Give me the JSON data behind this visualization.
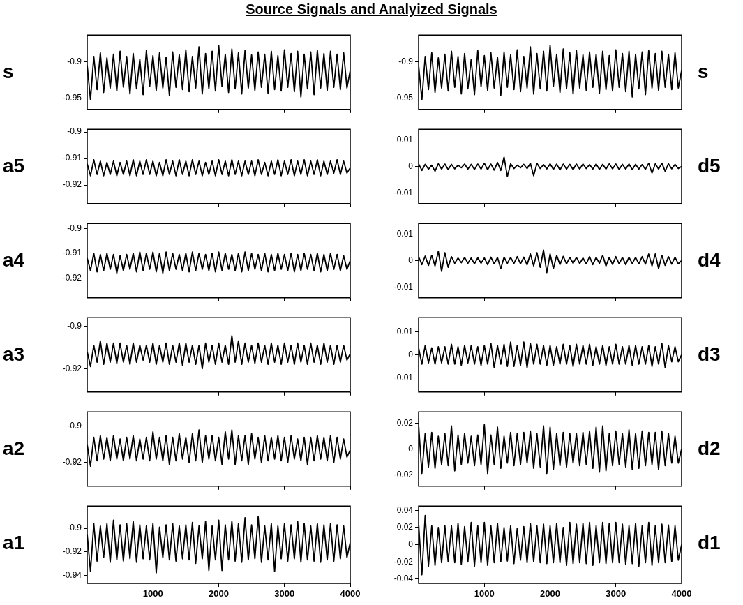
{
  "chart_data": [
    {
      "type": "line",
      "title": "Source Signals and Analyized Signals",
      "ylabel": "s",
      "xlim": [
        0,
        4000
      ],
      "xticks": [
        1000,
        2000,
        3000,
        4000
      ],
      "ylim": [
        -0.965,
        -0.864
      ],
      "yticks": [
        -0.95,
        -0.9
      ],
      "tick_labels": "y",
      "x": [
        0,
        50,
        100,
        150,
        200,
        250,
        300,
        350,
        400,
        450,
        500,
        550,
        600,
        650,
        700,
        750,
        800,
        850,
        900,
        950,
        1000,
        1050,
        1100,
        1150,
        1200,
        1250,
        1300,
        1350,
        1400,
        1450,
        1500,
        1550,
        1600,
        1650,
        1700,
        1750,
        1800,
        1850,
        1900,
        1950,
        2000,
        2050,
        2100,
        2150,
        2200,
        2250,
        2300,
        2350,
        2400,
        2450,
        2500,
        2550,
        2600,
        2650,
        2700,
        2750,
        2800,
        2850,
        2900,
        2950,
        3000,
        3050,
        3100,
        3150,
        3200,
        3250,
        3300,
        3350,
        3400,
        3450,
        3500,
        3550,
        3600,
        3650,
        3700,
        3750,
        3800,
        3850,
        3900,
        3950,
        4000
      ],
      "series": [
        {
          "color": "#000000",
          "values": [
            -0.905,
            -0.952,
            -0.893,
            -0.938,
            -0.888,
            -0.942,
            -0.895,
            -0.936,
            -0.89,
            -0.94,
            -0.886,
            -0.935,
            -0.893,
            -0.944,
            -0.889,
            -0.937,
            -0.897,
            -0.945,
            -0.885,
            -0.934,
            -0.892,
            -0.939,
            -0.888,
            -0.936,
            -0.894,
            -0.946,
            -0.887,
            -0.935,
            -0.891,
            -0.938,
            -0.884,
            -0.941,
            -0.893,
            -0.936,
            -0.88,
            -0.944,
            -0.889,
            -0.937,
            -0.886,
            -0.94,
            -0.878,
            -0.934,
            -0.89,
            -0.942,
            -0.883,
            -0.937,
            -0.888,
            -0.944,
            -0.885,
            -0.936,
            -0.891,
            -0.939,
            -0.887,
            -0.935,
            -0.89,
            -0.943,
            -0.886,
            -0.938,
            -0.892,
            -0.94,
            -0.884,
            -0.935,
            -0.889,
            -0.941,
            -0.886,
            -0.948,
            -0.89,
            -0.937,
            -0.887,
            -0.945,
            -0.885,
            -0.936,
            -0.889,
            -0.939,
            -0.886,
            -0.935,
            -0.89,
            -0.938,
            -0.888,
            -0.936,
            -0.912
          ]
        }
      ]
    },
    {
      "type": "line",
      "ylabel": "s",
      "xlim": [
        0,
        4000
      ],
      "xticks": [
        1000,
        2000,
        3000,
        4000
      ],
      "ylim": [
        -0.965,
        -0.864
      ],
      "yticks": [
        -0.95,
        -0.9
      ],
      "tick_labels": "y",
      "x": [
        0,
        50,
        100,
        150,
        200,
        250,
        300,
        350,
        400,
        450,
        500,
        550,
        600,
        650,
        700,
        750,
        800,
        850,
        900,
        950,
        1000,
        1050,
        1100,
        1150,
        1200,
        1250,
        1300,
        1350,
        1400,
        1450,
        1500,
        1550,
        1600,
        1650,
        1700,
        1750,
        1800,
        1850,
        1900,
        1950,
        2000,
        2050,
        2100,
        2150,
        2200,
        2250,
        2300,
        2350,
        2400,
        2450,
        2500,
        2550,
        2600,
        2650,
        2700,
        2750,
        2800,
        2850,
        2900,
        2950,
        3000,
        3050,
        3100,
        3150,
        3200,
        3250,
        3300,
        3350,
        3400,
        3450,
        3500,
        3550,
        3600,
        3650,
        3700,
        3750,
        3800,
        3850,
        3900,
        3950,
        4000
      ],
      "series": [
        {
          "color": "#000000",
          "values": [
            -0.905,
            -0.952,
            -0.893,
            -0.938,
            -0.888,
            -0.942,
            -0.895,
            -0.936,
            -0.89,
            -0.94,
            -0.886,
            -0.935,
            -0.893,
            -0.944,
            -0.889,
            -0.937,
            -0.897,
            -0.945,
            -0.885,
            -0.934,
            -0.892,
            -0.939,
            -0.888,
            -0.936,
            -0.894,
            -0.946,
            -0.887,
            -0.935,
            -0.891,
            -0.938,
            -0.884,
            -0.941,
            -0.893,
            -0.936,
            -0.88,
            -0.944,
            -0.889,
            -0.937,
            -0.886,
            -0.94,
            -0.878,
            -0.934,
            -0.89,
            -0.942,
            -0.883,
            -0.937,
            -0.888,
            -0.944,
            -0.885,
            -0.936,
            -0.891,
            -0.939,
            -0.887,
            -0.935,
            -0.89,
            -0.943,
            -0.886,
            -0.938,
            -0.892,
            -0.94,
            -0.884,
            -0.935,
            -0.889,
            -0.941,
            -0.886,
            -0.948,
            -0.89,
            -0.937,
            -0.887,
            -0.945,
            -0.885,
            -0.936,
            -0.889,
            -0.939,
            -0.886,
            -0.935,
            -0.89,
            -0.938,
            -0.888,
            -0.936,
            -0.912
          ]
        }
      ]
    },
    {
      "type": "line",
      "ylabel": "a5",
      "xlim": [
        0,
        4000
      ],
      "xticks": [
        1000,
        2000,
        3000,
        4000
      ],
      "ylim": [
        -0.927,
        -0.899
      ],
      "yticks": [
        -0.92,
        -0.91,
        -0.9
      ],
      "tick_labels": "y",
      "x": [
        0,
        50,
        100,
        150,
        200,
        250,
        300,
        350,
        400,
        450,
        500,
        550,
        600,
        650,
        700,
        750,
        800,
        850,
        900,
        950,
        1000,
        1050,
        1100,
        1150,
        1200,
        1250,
        1300,
        1350,
        1400,
        1450,
        1500,
        1550,
        1600,
        1650,
        1700,
        1750,
        1800,
        1850,
        1900,
        1950,
        2000,
        2050,
        2100,
        2150,
        2200,
        2250,
        2300,
        2350,
        2400,
        2450,
        2500,
        2550,
        2600,
        2650,
        2700,
        2750,
        2800,
        2850,
        2900,
        2950,
        3000,
        3050,
        3100,
        3150,
        3200,
        3250,
        3300,
        3350,
        3400,
        3450,
        3500,
        3550,
        3600,
        3650,
        3700,
        3750,
        3800,
        3850,
        3900,
        3950,
        4000
      ],
      "series": [
        {
          "color": "#000000",
          "values": [
            -0.912,
            -0.9165,
            -0.9105,
            -0.916,
            -0.911,
            -0.9165,
            -0.9115,
            -0.916,
            -0.911,
            -0.9165,
            -0.9115,
            -0.916,
            -0.911,
            -0.9165,
            -0.9105,
            -0.9165,
            -0.911,
            -0.916,
            -0.9105,
            -0.916,
            -0.911,
            -0.9165,
            -0.9115,
            -0.9165,
            -0.9105,
            -0.916,
            -0.911,
            -0.9165,
            -0.9105,
            -0.916,
            -0.911,
            -0.9165,
            -0.9105,
            -0.916,
            -0.911,
            -0.9165,
            -0.9115,
            -0.916,
            -0.911,
            -0.9165,
            -0.9105,
            -0.916,
            -0.911,
            -0.9165,
            -0.9105,
            -0.916,
            -0.911,
            -0.9165,
            -0.911,
            -0.916,
            -0.911,
            -0.9165,
            -0.9105,
            -0.916,
            -0.9115,
            -0.9165,
            -0.911,
            -0.916,
            -0.9105,
            -0.9165,
            -0.911,
            -0.916,
            -0.9105,
            -0.9165,
            -0.911,
            -0.916,
            -0.9105,
            -0.9165,
            -0.911,
            -0.916,
            -0.9105,
            -0.9165,
            -0.911,
            -0.916,
            -0.911,
            -0.9155,
            -0.9105,
            -0.916,
            -0.911,
            -0.9155,
            -0.9135
          ]
        }
      ]
    },
    {
      "type": "line",
      "ylabel": "d5",
      "xlim": [
        0,
        4000
      ],
      "xticks": [
        1000,
        2000,
        3000,
        4000
      ],
      "ylim": [
        -0.014,
        0.014
      ],
      "yticks": [
        -0.01,
        0,
        0.01
      ],
      "tick_labels": "y",
      "x": [
        0,
        50,
        100,
        150,
        200,
        250,
        300,
        350,
        400,
        450,
        500,
        550,
        600,
        650,
        700,
        750,
        800,
        850,
        900,
        950,
        1000,
        1050,
        1100,
        1150,
        1200,
        1250,
        1300,
        1350,
        1400,
        1450,
        1500,
        1550,
        1600,
        1650,
        1700,
        1750,
        1800,
        1850,
        1900,
        1950,
        2000,
        2050,
        2100,
        2150,
        2200,
        2250,
        2300,
        2350,
        2400,
        2450,
        2500,
        2550,
        2600,
        2650,
        2700,
        2750,
        2800,
        2850,
        2900,
        2950,
        3000,
        3050,
        3100,
        3150,
        3200,
        3250,
        3300,
        3350,
        3400,
        3450,
        3500,
        3550,
        3600,
        3650,
        3700,
        3750,
        3800,
        3850,
        3900,
        3950,
        4000
      ],
      "series": [
        {
          "color": "#000000",
          "values": [
            0.001,
            -0.0015,
            0.0008,
            -0.001,
            0.0005,
            -0.0018,
            0.001,
            -0.001,
            0.0009,
            -0.0012,
            0.0008,
            -0.0009,
            0.0005,
            -0.0005,
            0.0009,
            -0.001,
            0.0008,
            -0.0011,
            0.0009,
            -0.001,
            0.0012,
            -0.0012,
            0.0009,
            -0.0014,
            0.0015,
            -0.0015,
            0.0035,
            -0.0038,
            0.001,
            -0.0008,
            0.0005,
            -0.0005,
            0.0008,
            -0.0008,
            0.0012,
            -0.0035,
            0.0012,
            -0.0008,
            0.0007,
            -0.0009,
            0.001,
            -0.0011,
            0.0009,
            -0.0013,
            0.0009,
            -0.001,
            0.0008,
            -0.0012,
            0.0009,
            -0.001,
            0.0009,
            -0.0008,
            0.0007,
            -0.001,
            0.0009,
            -0.0011,
            0.0008,
            -0.001,
            0.001,
            -0.0009,
            0.0009,
            -0.0011,
            0.0008,
            -0.001,
            0.0009,
            -0.0012,
            0.0008,
            -0.001,
            0.0007,
            -0.0011,
            0.0012,
            -0.0025,
            0.001,
            -0.001,
            0.0012,
            -0.0018,
            0.001,
            -0.0009,
            0.0008,
            -0.0008,
            0
          ]
        }
      ]
    },
    {
      "type": "line",
      "ylabel": "a4",
      "xlim": [
        0,
        4000
      ],
      "xticks": [
        1000,
        2000,
        3000,
        4000
      ],
      "ylim": [
        -0.928,
        -0.898
      ],
      "yticks": [
        -0.92,
        -0.91,
        -0.9
      ],
      "tick_labels": "y",
      "x": [
        0,
        50,
        100,
        150,
        200,
        250,
        300,
        350,
        400,
        450,
        500,
        550,
        600,
        650,
        700,
        750,
        800,
        850,
        900,
        950,
        1000,
        1050,
        1100,
        1150,
        1200,
        1250,
        1300,
        1350,
        1400,
        1450,
        1500,
        1550,
        1600,
        1650,
        1700,
        1750,
        1800,
        1850,
        1900,
        1950,
        2000,
        2050,
        2100,
        2150,
        2200,
        2250,
        2300,
        2350,
        2400,
        2450,
        2500,
        2550,
        2600,
        2650,
        2700,
        2750,
        2800,
        2850,
        2900,
        2950,
        3000,
        3050,
        3100,
        3150,
        3200,
        3250,
        3300,
        3350,
        3400,
        3450,
        3500,
        3550,
        3600,
        3650,
        3700,
        3750,
        3800,
        3850,
        3900,
        3950,
        4000
      ],
      "series": [
        {
          "color": "#000000",
          "values": [
            -0.912,
            -0.917,
            -0.91,
            -0.9175,
            -0.9105,
            -0.917,
            -0.91,
            -0.9165,
            -0.9105,
            -0.918,
            -0.911,
            -0.917,
            -0.9105,
            -0.9165,
            -0.91,
            -0.9175,
            -0.9095,
            -0.917,
            -0.91,
            -0.9165,
            -0.9095,
            -0.9175,
            -0.91,
            -0.918,
            -0.9095,
            -0.917,
            -0.91,
            -0.9165,
            -0.9105,
            -0.917,
            -0.91,
            -0.9175,
            -0.9095,
            -0.917,
            -0.91,
            -0.9165,
            -0.9105,
            -0.917,
            -0.91,
            -0.9175,
            -0.9095,
            -0.917,
            -0.91,
            -0.9165,
            -0.9105,
            -0.917,
            -0.91,
            -0.9175,
            -0.9095,
            -0.917,
            -0.91,
            -0.9165,
            -0.9105,
            -0.917,
            -0.91,
            -0.9175,
            -0.9105,
            -0.917,
            -0.91,
            -0.9165,
            -0.9105,
            -0.917,
            -0.91,
            -0.9175,
            -0.9105,
            -0.917,
            -0.91,
            -0.9165,
            -0.9105,
            -0.917,
            -0.91,
            -0.9175,
            -0.9105,
            -0.917,
            -0.91,
            -0.9165,
            -0.9105,
            -0.917,
            -0.911,
            -0.9165,
            -0.913
          ]
        }
      ]
    },
    {
      "type": "line",
      "ylabel": "d4",
      "xlim": [
        0,
        4000
      ],
      "xticks": [
        1000,
        2000,
        3000,
        4000
      ],
      "ylim": [
        -0.014,
        0.014
      ],
      "yticks": [
        -0.01,
        0,
        0.01
      ],
      "tick_labels": "y",
      "x": [
        0,
        50,
        100,
        150,
        200,
        250,
        300,
        350,
        400,
        450,
        500,
        550,
        600,
        650,
        700,
        750,
        800,
        850,
        900,
        950,
        1000,
        1050,
        1100,
        1150,
        1200,
        1250,
        1300,
        1350,
        1400,
        1450,
        1500,
        1550,
        1600,
        1650,
        1700,
        1750,
        1800,
        1850,
        1900,
        1950,
        2000,
        2050,
        2100,
        2150,
        2200,
        2250,
        2300,
        2350,
        2400,
        2450,
        2500,
        2550,
        2600,
        2650,
        2700,
        2750,
        2800,
        2850,
        2900,
        2950,
        3000,
        3050,
        3100,
        3150,
        3200,
        3250,
        3300,
        3350,
        3400,
        3450,
        3500,
        3550,
        3600,
        3650,
        3700,
        3750,
        3800,
        3850,
        3900,
        3950,
        4000
      ],
      "series": [
        {
          "color": "#000000",
          "values": [
            0.0015,
            -0.0015,
            0.0017,
            -0.0018,
            0.002,
            -0.002,
            0.0035,
            -0.004,
            0.003,
            -0.0025,
            0.0015,
            -0.001,
            0.001,
            -0.0008,
            0.0012,
            -0.001,
            0.001,
            -0.0012,
            0.0011,
            -0.001,
            0.001,
            -0.0015,
            0.0013,
            -0.0012,
            0.0012,
            -0.003,
            0.0013,
            -0.001,
            0.0012,
            -0.0011,
            0.0015,
            -0.0012,
            0.0013,
            -0.0016,
            0.0025,
            -0.002,
            0.003,
            -0.0025,
            0.004,
            -0.0045,
            0.0025,
            -0.003,
            0.002,
            -0.0015,
            0.0016,
            -0.0012,
            0.0012,
            -0.001,
            0.0012,
            -0.0011,
            0.001,
            -0.0012,
            0.0015,
            -0.0015,
            0.0012,
            -0.001,
            0.002,
            -0.002,
            0.0012,
            -0.0014,
            0.0015,
            -0.0012,
            0.0012,
            -0.0015,
            0.0013,
            -0.0011,
            0.0012,
            -0.0012,
            0.0015,
            -0.0013,
            0.0025,
            -0.002,
            0.0025,
            -0.003,
            0.002,
            -0.0018,
            0.0015,
            -0.0013,
            0.0013,
            -0.0012,
            0
          ]
        }
      ]
    },
    {
      "type": "line",
      "ylabel": "a3",
      "xlim": [
        0,
        4000
      ],
      "xticks": [
        1000,
        2000,
        3000,
        4000
      ],
      "ylim": [
        -0.931,
        -0.896
      ],
      "yticks": [
        -0.92,
        -0.9
      ],
      "tick_labels": "y",
      "x": [
        0,
        50,
        100,
        150,
        200,
        250,
        300,
        350,
        400,
        450,
        500,
        550,
        600,
        650,
        700,
        750,
        800,
        850,
        900,
        950,
        1000,
        1050,
        1100,
        1150,
        1200,
        1250,
        1300,
        1350,
        1400,
        1450,
        1500,
        1550,
        1600,
        1650,
        1700,
        1750,
        1800,
        1850,
        1900,
        1950,
        2000,
        2050,
        2100,
        2150,
        2200,
        2250,
        2300,
        2350,
        2400,
        2450,
        2500,
        2550,
        2600,
        2650,
        2700,
        2750,
        2800,
        2850,
        2900,
        2950,
        3000,
        3050,
        3100,
        3150,
        3200,
        3250,
        3300,
        3350,
        3400,
        3450,
        3500,
        3550,
        3600,
        3650,
        3700,
        3750,
        3800,
        3850,
        3900,
        3950,
        4000
      ],
      "series": [
        {
          "color": "#000000",
          "values": [
            -0.912,
            -0.919,
            -0.909,
            -0.917,
            -0.907,
            -0.918,
            -0.908,
            -0.917,
            -0.908,
            -0.9175,
            -0.908,
            -0.917,
            -0.909,
            -0.918,
            -0.908,
            -0.917,
            -0.909,
            -0.916,
            -0.909,
            -0.917,
            -0.908,
            -0.918,
            -0.909,
            -0.917,
            -0.908,
            -0.918,
            -0.909,
            -0.917,
            -0.908,
            -0.9185,
            -0.908,
            -0.917,
            -0.909,
            -0.918,
            -0.909,
            -0.92,
            -0.908,
            -0.917,
            -0.909,
            -0.918,
            -0.908,
            -0.917,
            -0.909,
            -0.918,
            -0.9045,
            -0.917,
            -0.907,
            -0.918,
            -0.908,
            -0.917,
            -0.909,
            -0.9175,
            -0.908,
            -0.917,
            -0.909,
            -0.918,
            -0.908,
            -0.917,
            -0.909,
            -0.918,
            -0.908,
            -0.917,
            -0.909,
            -0.918,
            -0.908,
            -0.917,
            -0.909,
            -0.918,
            -0.908,
            -0.917,
            -0.909,
            -0.918,
            -0.908,
            -0.917,
            -0.909,
            -0.918,
            -0.909,
            -0.917,
            -0.909,
            -0.916,
            -0.913
          ]
        }
      ]
    },
    {
      "type": "line",
      "ylabel": "d3",
      "xlim": [
        0,
        4000
      ],
      "xticks": [
        1000,
        2000,
        3000,
        4000
      ],
      "ylim": [
        -0.016,
        0.016
      ],
      "yticks": [
        -0.01,
        0,
        0.01
      ],
      "tick_labels": "y",
      "x": [
        0,
        50,
        100,
        150,
        200,
        250,
        300,
        350,
        400,
        450,
        500,
        550,
        600,
        650,
        700,
        750,
        800,
        850,
        900,
        950,
        1000,
        1050,
        1100,
        1150,
        1200,
        1250,
        1300,
        1350,
        1400,
        1450,
        1500,
        1550,
        1600,
        1650,
        1700,
        1750,
        1800,
        1850,
        1900,
        1950,
        2000,
        2050,
        2100,
        2150,
        2200,
        2250,
        2300,
        2350,
        2400,
        2450,
        2500,
        2550,
        2600,
        2650,
        2700,
        2750,
        2800,
        2850,
        2900,
        2950,
        3000,
        3050,
        3100,
        3150,
        3200,
        3250,
        3300,
        3350,
        3400,
        3450,
        3500,
        3550,
        3600,
        3650,
        3700,
        3750,
        3800,
        3850,
        3900,
        3950,
        4000
      ],
      "series": [
        {
          "color": "#000000",
          "values": [
            0.003,
            -0.004,
            0.004,
            -0.0035,
            0.003,
            -0.004,
            0.0035,
            -0.0035,
            0.0035,
            -0.004,
            0.0045,
            -0.004,
            0.0035,
            -0.0045,
            0.004,
            -0.0035,
            0.004,
            -0.004,
            0.0035,
            -0.0045,
            0.004,
            -0.004,
            0.005,
            -0.0055,
            0.004,
            -0.004,
            0.0045,
            -0.005,
            0.0055,
            -0.005,
            0.004,
            -0.0045,
            0.0055,
            -0.0055,
            0.005,
            -0.004,
            0.0045,
            -0.004,
            0.004,
            -0.0045,
            0.004,
            -0.0045,
            0.0035,
            -0.004,
            0.0045,
            -0.004,
            0.004,
            -0.005,
            0.0045,
            -0.004,
            0.004,
            -0.004,
            0.0045,
            -0.0045,
            0.0035,
            -0.004,
            0.004,
            -0.0045,
            0.0035,
            -0.004,
            0.0045,
            -0.004,
            0.0035,
            -0.004,
            0.004,
            -0.0045,
            0.004,
            -0.004,
            0.0035,
            -0.004,
            0.004,
            -0.005,
            0.0035,
            -0.004,
            0.005,
            -0.0055,
            0.004,
            -0.003,
            0.0035,
            -0.003,
            0
          ]
        }
      ]
    },
    {
      "type": "line",
      "ylabel": "a2",
      "xlim": [
        0,
        4000
      ],
      "xticks": [
        1000,
        2000,
        3000,
        4000
      ],
      "ylim": [
        -0.933,
        -0.892
      ],
      "yticks": [
        -0.92,
        -0.9
      ],
      "tick_labels": "y",
      "x": [
        0,
        50,
        100,
        150,
        200,
        250,
        300,
        350,
        400,
        450,
        500,
        550,
        600,
        650,
        700,
        750,
        800,
        850,
        900,
        950,
        1000,
        1050,
        1100,
        1150,
        1200,
        1250,
        1300,
        1350,
        1400,
        1450,
        1500,
        1550,
        1600,
        1650,
        1700,
        1750,
        1800,
        1850,
        1900,
        1950,
        2000,
        2050,
        2100,
        2150,
        2200,
        2250,
        2300,
        2350,
        2400,
        2450,
        2500,
        2550,
        2600,
        2650,
        2700,
        2750,
        2800,
        2850,
        2900,
        2950,
        3000,
        3050,
        3100,
        3150,
        3200,
        3250,
        3300,
        3350,
        3400,
        3450,
        3500,
        3550,
        3600,
        3650,
        3700,
        3750,
        3800,
        3850,
        3900,
        3950,
        4000
      ],
      "series": [
        {
          "color": "#000000",
          "values": [
            -0.91,
            -0.922,
            -0.906,
            -0.919,
            -0.905,
            -0.918,
            -0.906,
            -0.919,
            -0.905,
            -0.918,
            -0.907,
            -0.919,
            -0.906,
            -0.918,
            -0.905,
            -0.919,
            -0.907,
            -0.918,
            -0.906,
            -0.919,
            -0.903,
            -0.918,
            -0.906,
            -0.919,
            -0.905,
            -0.921,
            -0.906,
            -0.919,
            -0.904,
            -0.918,
            -0.906,
            -0.92,
            -0.904,
            -0.919,
            -0.902,
            -0.92,
            -0.905,
            -0.918,
            -0.905,
            -0.919,
            -0.906,
            -0.921,
            -0.903,
            -0.918,
            -0.902,
            -0.921,
            -0.905,
            -0.919,
            -0.905,
            -0.921,
            -0.904,
            -0.918,
            -0.906,
            -0.92,
            -0.905,
            -0.919,
            -0.906,
            -0.918,
            -0.905,
            -0.919,
            -0.906,
            -0.92,
            -0.905,
            -0.918,
            -0.907,
            -0.919,
            -0.906,
            -0.921,
            -0.906,
            -0.919,
            -0.905,
            -0.918,
            -0.906,
            -0.919,
            -0.905,
            -0.92,
            -0.906,
            -0.918,
            -0.907,
            -0.917,
            -0.913
          ]
        }
      ]
    },
    {
      "type": "line",
      "ylabel": "d2",
      "xlim": [
        0,
        4000
      ],
      "xticks": [
        1000,
        2000,
        3000,
        4000
      ],
      "ylim": [
        -0.029,
        0.029
      ],
      "yticks": [
        -0.02,
        0,
        0.02
      ],
      "tick_labels": "y",
      "x": [
        0,
        50,
        100,
        150,
        200,
        250,
        300,
        350,
        400,
        450,
        500,
        550,
        600,
        650,
        700,
        750,
        800,
        850,
        900,
        950,
        1000,
        1050,
        1100,
        1150,
        1200,
        1250,
        1300,
        1350,
        1400,
        1450,
        1500,
        1550,
        1600,
        1650,
        1700,
        1750,
        1800,
        1850,
        1900,
        1950,
        2000,
        2050,
        2100,
        2150,
        2200,
        2250,
        2300,
        2350,
        2400,
        2450,
        2500,
        2550,
        2600,
        2650,
        2700,
        2750,
        2800,
        2850,
        2900,
        2950,
        3000,
        3050,
        3100,
        3150,
        3200,
        3250,
        3300,
        3350,
        3400,
        3450,
        3500,
        3550,
        3600,
        3650,
        3700,
        3750,
        3800,
        3850,
        3900,
        3950,
        4000
      ],
      "series": [
        {
          "color": "#000000",
          "values": [
            0.019,
            -0.019,
            0.012,
            -0.014,
            0.013,
            -0.015,
            0.01,
            -0.012,
            0.012,
            -0.013,
            0.018,
            -0.017,
            0.011,
            -0.012,
            0.012,
            -0.011,
            0.01,
            -0.013,
            0.011,
            -0.012,
            0.019,
            -0.019,
            0.011,
            -0.012,
            0.017,
            -0.015,
            0.01,
            -0.011,
            0.013,
            -0.013,
            0.012,
            -0.012,
            0.013,
            -0.011,
            0.014,
            -0.015,
            0.012,
            -0.014,
            0.018,
            -0.019,
            0.017,
            -0.016,
            0.012,
            -0.013,
            0.013,
            -0.014,
            0.012,
            -0.011,
            0.012,
            -0.013,
            0.013,
            -0.012,
            0.014,
            -0.015,
            0.017,
            -0.018,
            0.018,
            -0.017,
            0.012,
            -0.013,
            0.014,
            -0.012,
            0.012,
            -0.014,
            0.015,
            -0.016,
            0.012,
            -0.015,
            0.014,
            -0.013,
            0.013,
            -0.012,
            0.013,
            -0.016,
            0.014,
            -0.013,
            0.012,
            -0.011,
            0.01,
            -0.011,
            0
          ]
        }
      ]
    },
    {
      "type": "line",
      "ylabel": "a1",
      "xlim": [
        0,
        4000
      ],
      "xticks": [
        1000,
        2000,
        3000,
        4000
      ],
      "ylim": [
        -0.947,
        -0.881
      ],
      "yticks": [
        -0.94,
        -0.92,
        -0.9
      ],
      "x": [
        0,
        50,
        100,
        150,
        200,
        250,
        300,
        350,
        400,
        450,
        500,
        550,
        600,
        650,
        700,
        750,
        800,
        850,
        900,
        950,
        1000,
        1050,
        1100,
        1150,
        1200,
        1250,
        1300,
        1350,
        1400,
        1450,
        1500,
        1550,
        1600,
        1650,
        1700,
        1750,
        1800,
        1850,
        1900,
        1950,
        2000,
        2050,
        2100,
        2150,
        2200,
        2250,
        2300,
        2350,
        2400,
        2450,
        2500,
        2550,
        2600,
        2650,
        2700,
        2750,
        2800,
        2850,
        2900,
        2950,
        3000,
        3050,
        3100,
        3150,
        3200,
        3250,
        3300,
        3350,
        3400,
        3450,
        3500,
        3550,
        3600,
        3650,
        3700,
        3750,
        3800,
        3850,
        3900,
        3950,
        4000
      ],
      "series": [
        {
          "color": "#000000",
          "values": [
            -0.905,
            -0.937,
            -0.896,
            -0.928,
            -0.898,
            -0.925,
            -0.896,
            -0.929,
            -0.893,
            -0.927,
            -0.897,
            -0.928,
            -0.896,
            -0.926,
            -0.894,
            -0.929,
            -0.897,
            -0.926,
            -0.898,
            -0.927,
            -0.896,
            -0.938,
            -0.899,
            -0.925,
            -0.897,
            -0.927,
            -0.896,
            -0.928,
            -0.898,
            -0.926,
            -0.897,
            -0.927,
            -0.895,
            -0.93,
            -0.898,
            -0.926,
            -0.894,
            -0.936,
            -0.898,
            -0.927,
            -0.893,
            -0.936,
            -0.897,
            -0.927,
            -0.894,
            -0.928,
            -0.896,
            -0.929,
            -0.891,
            -0.927,
            -0.897,
            -0.926,
            -0.89,
            -0.929,
            -0.898,
            -0.927,
            -0.896,
            -0.937,
            -0.898,
            -0.926,
            -0.896,
            -0.928,
            -0.897,
            -0.926,
            -0.894,
            -0.929,
            -0.896,
            -0.927,
            -0.898,
            -0.928,
            -0.896,
            -0.929,
            -0.897,
            -0.927,
            -0.896,
            -0.928,
            -0.897,
            -0.926,
            -0.898,
            -0.925,
            -0.912
          ]
        }
      ]
    },
    {
      "type": "line",
      "ylabel": "d1",
      "xlim": [
        0,
        4000
      ],
      "xticks": [
        1000,
        2000,
        3000,
        4000
      ],
      "ylim": [
        -0.045,
        0.045
      ],
      "yticks": [
        -0.04,
        -0.02,
        0,
        0.02,
        0.04
      ],
      "x": [
        0,
        50,
        100,
        150,
        200,
        250,
        300,
        350,
        400,
        450,
        500,
        550,
        600,
        650,
        700,
        750,
        800,
        850,
        900,
        950,
        1000,
        1050,
        1100,
        1150,
        1200,
        1250,
        1300,
        1350,
        1400,
        1450,
        1500,
        1550,
        1600,
        1650,
        1700,
        1750,
        1800,
        1850,
        1900,
        1950,
        2000,
        2050,
        2100,
        2150,
        2200,
        2250,
        2300,
        2350,
        2400,
        2450,
        2500,
        2550,
        2600,
        2650,
        2700,
        2750,
        2800,
        2850,
        2900,
        2950,
        3000,
        3050,
        3100,
        3150,
        3200,
        3250,
        3300,
        3350,
        3400,
        3450,
        3500,
        3550,
        3600,
        3650,
        3700,
        3750,
        3800,
        3850,
        3900,
        3950,
        4000
      ],
      "series": [
        {
          "color": "#000000",
          "values": [
            0.025,
            -0.035,
            0.034,
            -0.025,
            0.022,
            -0.024,
            0.02,
            -0.021,
            0.022,
            -0.02,
            0.022,
            -0.021,
            0.025,
            -0.023,
            0.021,
            -0.02,
            0.026,
            -0.025,
            0.022,
            -0.021,
            0.026,
            -0.024,
            0.022,
            -0.021,
            0.025,
            -0.02,
            0.02,
            -0.019,
            0.022,
            -0.022,
            0.019,
            -0.018,
            0.021,
            -0.021,
            0.025,
            -0.02,
            0.022,
            -0.021,
            0.024,
            -0.022,
            0.022,
            -0.021,
            0.025,
            -0.021,
            0.02,
            -0.024,
            0.026,
            -0.022,
            0.024,
            -0.021,
            0.025,
            -0.022,
            0.026,
            -0.024,
            0.022,
            -0.021,
            0.026,
            -0.022,
            0.025,
            -0.021,
            0.026,
            -0.021,
            0.024,
            -0.023,
            0.022,
            -0.022,
            0.025,
            -0.025,
            0.022,
            -0.021,
            0.026,
            -0.024,
            0.022,
            -0.021,
            0.024,
            -0.021,
            0.023,
            -0.02,
            0.022,
            -0.018,
            0
          ]
        }
      ]
    }
  ]
}
